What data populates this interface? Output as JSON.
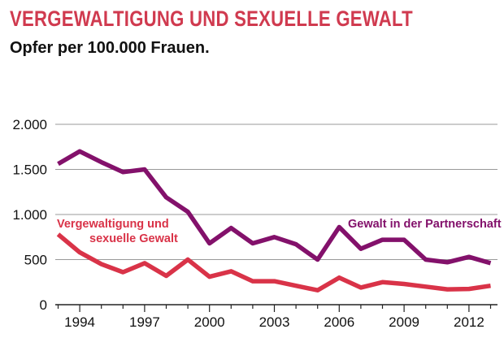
{
  "colors": {
    "title": "#d03a4f",
    "series_purple": "#83116b",
    "series_red": "#d93348",
    "grid": "#999999",
    "axis": "#222222"
  },
  "chart_data": {
    "type": "line",
    "title": "VERGEWALTIGUNG UND SEXUELLE GEWALT",
    "subtitle": "Opfer per 100.000 Frauen.",
    "x": [
      1993,
      1994,
      1995,
      1996,
      1997,
      1998,
      1999,
      2000,
      2001,
      2002,
      2003,
      2004,
      2005,
      2006,
      2007,
      2008,
      2009,
      2010,
      2011,
      2012,
      2013
    ],
    "x_ticks": [
      1994,
      1997,
      2000,
      2003,
      2006,
      2009,
      2012
    ],
    "x_tick_labels": [
      "1994",
      "1997",
      "2000",
      "2003",
      "2006",
      "2009",
      "2012"
    ],
    "ylim": [
      0,
      2000
    ],
    "y_ticks": [
      0,
      500,
      1000,
      1500,
      2000
    ],
    "y_tick_labels": [
      "0",
      "500",
      "1.000",
      "1.500",
      "2.000"
    ],
    "grid": "horizontal",
    "series": [
      {
        "name": "Gewalt in der Partnerschaft",
        "color": "#83116b",
        "values": [
          1560,
          1700,
          1580,
          1470,
          1500,
          1190,
          1030,
          680,
          850,
          680,
          750,
          670,
          500,
          860,
          620,
          720,
          720,
          500,
          470,
          530,
          460
        ]
      },
      {
        "name": "Vergewaltigung und sexuelle Gewalt",
        "name_lines": [
          "Vergewaltigung und",
          "sexuelle Gewalt"
        ],
        "color": "#d93348",
        "values": [
          780,
          580,
          450,
          360,
          460,
          320,
          500,
          310,
          370,
          260,
          260,
          210,
          160,
          300,
          190,
          250,
          230,
          200,
          170,
          175,
          210
        ]
      }
    ]
  }
}
